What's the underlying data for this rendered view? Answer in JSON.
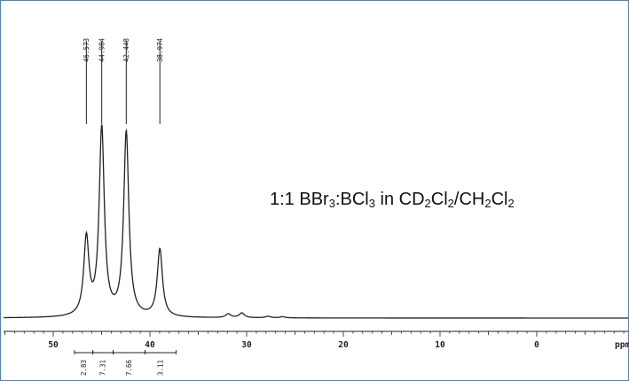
{
  "chart_data": {
    "type": "line",
    "xlabel": "ppm",
    "xlim": [
      55,
      -9
    ],
    "x_ticks": [
      50,
      40,
      30,
      20,
      10,
      0
    ],
    "x_tick_labels": [
      "50",
      "40",
      "30",
      "20",
      "10",
      "0"
    ],
    "peaks": [
      {
        "ppm": 46.573,
        "label": "46.573",
        "height": 0.41
      },
      {
        "ppm": 44.984,
        "label": "44.984",
        "height": 1.0
      },
      {
        "ppm": 42.448,
        "label": "42.448",
        "height": 0.98
      },
      {
        "ppm": 38.974,
        "label": "38.974",
        "height": 0.36
      }
    ],
    "minor_peaks": [
      {
        "ppm": 31.9,
        "height": 0.02
      },
      {
        "ppm": 30.5,
        "height": 0.025
      },
      {
        "ppm": 27.8,
        "height": 0.008
      },
      {
        "ppm": 26.3,
        "height": 0.006
      }
    ],
    "integrals": [
      {
        "from": 47.8,
        "to": 45.9,
        "value": "2.83"
      },
      {
        "from": 45.9,
        "to": 43.8,
        "value": "7.31"
      },
      {
        "from": 43.8,
        "to": 40.5,
        "value": "7.66"
      },
      {
        "from": 40.5,
        "to": 37.3,
        "value": "3.11"
      }
    ],
    "annotation": {
      "prefix": "1:1 BBr",
      "sub1": "3",
      "mid1": ":BCl",
      "sub2": "3",
      "mid2": " in CD",
      "sub3": "2",
      "mid3": "Cl",
      "sub4": "2",
      "mid4": "/CH",
      "sub5": "2",
      "mid5": "Cl",
      "sub6": "2"
    }
  },
  "colors": {
    "frame": "#4f81bd",
    "trace": "#222222"
  }
}
